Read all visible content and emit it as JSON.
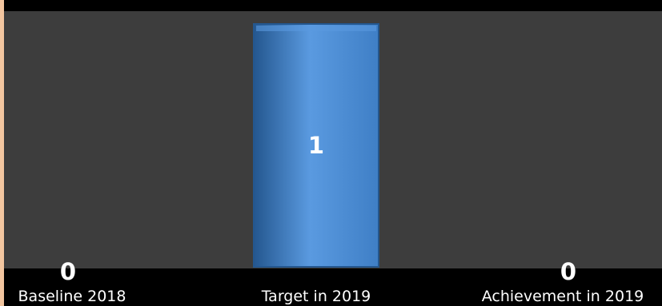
{
  "chart_data": {
    "type": "bar",
    "categories": [
      "Baseline 2018",
      "Target in 2019",
      "Achievement in 2019"
    ],
    "values": [
      0,
      1,
      0
    ],
    "data_labels": [
      "0",
      "1",
      "0"
    ],
    "title": "",
    "xlabel": "",
    "ylabel": "",
    "ylim": [
      0,
      1
    ],
    "grid": false,
    "legend": "none"
  },
  "colors": {
    "bar": "#3f7fc6",
    "bar_highlight": "#5a9ae0",
    "bar_shadow": "#24578f",
    "plot_background": "#3d3d3d",
    "frame": "#000000",
    "text": "#ffffff"
  }
}
